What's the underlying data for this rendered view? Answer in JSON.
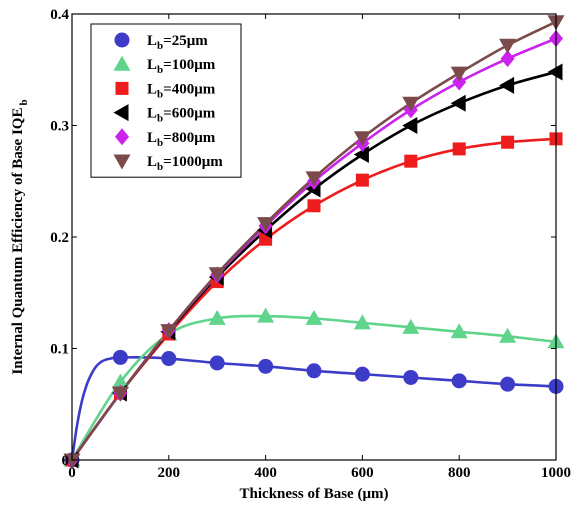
{
  "chart_data": {
    "type": "line",
    "xlabel": "Thickness of Base (μm)",
    "ylabel": "Internal Quantum Efficiency of Base IQE",
    "ylabel_sub": "b",
    "xlim": [
      0,
      1000
    ],
    "ylim": [
      0,
      0.4
    ],
    "xticks": [
      0,
      200,
      400,
      600,
      800,
      1000
    ],
    "yticks": [
      0,
      0.1,
      0.2,
      0.3,
      0.4
    ],
    "xtick_labels": [
      "0",
      "200",
      "400",
      "600",
      "800",
      "1000"
    ],
    "ytick_labels": [
      "0",
      "0.1",
      "0.2",
      "0.3",
      "0.4"
    ],
    "grid": false,
    "legend_position": "top-left",
    "x": [
      0,
      100,
      200,
      300,
      400,
      500,
      600,
      700,
      800,
      900,
      1000
    ],
    "series": [
      {
        "name": "L_b=25μm",
        "label_main": "L",
        "label_sub": "b",
        "label_rest": "=25μm",
        "color": "#3c3cc8",
        "marker": "circle",
        "values": [
          0,
          0.092,
          0.091,
          0.087,
          0.084,
          0.08,
          0.077,
          0.074,
          0.071,
          0.068,
          0.066
        ],
        "curve_x": [
          0,
          10,
          20,
          30,
          40,
          50,
          60,
          70,
          80,
          90,
          100,
          150,
          200,
          300,
          400,
          500,
          600,
          700,
          800,
          900,
          1000
        ],
        "curve_y": [
          0,
          0.03,
          0.052,
          0.067,
          0.077,
          0.084,
          0.088,
          0.09,
          0.091,
          0.092,
          0.092,
          0.092,
          0.091,
          0.087,
          0.084,
          0.08,
          0.077,
          0.074,
          0.071,
          0.068,
          0.066
        ]
      },
      {
        "name": "L_b=100μm",
        "label_main": "L",
        "label_sub": "b",
        "label_rest": "=100μm",
        "color": "#5fd48a",
        "marker": "triangle-up",
        "values": [
          0,
          0.07,
          0.113,
          0.127,
          0.129,
          0.127,
          0.123,
          0.119,
          0.115,
          0.111,
          0.106
        ]
      },
      {
        "name": "L_b=400μm",
        "label_main": "L",
        "label_sub": "b",
        "label_rest": "=400μm",
        "color": "#ee1c1c",
        "marker": "square",
        "values": [
          0,
          0.06,
          0.113,
          0.16,
          0.198,
          0.228,
          0.251,
          0.268,
          0.279,
          0.285,
          0.288
        ]
      },
      {
        "name": "L_b=600μm",
        "label_main": "L",
        "label_sub": "b",
        "label_rest": "=600μm",
        "color": "#000000",
        "marker": "triangle-left",
        "values": [
          0,
          0.06,
          0.115,
          0.164,
          0.206,
          0.243,
          0.274,
          0.3,
          0.32,
          0.336,
          0.348
        ]
      },
      {
        "name": "L_b=800μm",
        "label_main": "L",
        "label_sub": "b",
        "label_rest": "=800μm",
        "color": "#cc22ee",
        "marker": "diamond",
        "values": [
          0,
          0.06,
          0.116,
          0.166,
          0.21,
          0.25,
          0.284,
          0.314,
          0.339,
          0.36,
          0.378
        ]
      },
      {
        "name": "L_b=1000μm",
        "label_main": "L",
        "label_sub": "b",
        "label_rest": "=1000μm",
        "color": "#7b4a4a",
        "marker": "triangle-down",
        "values": [
          0,
          0.06,
          0.116,
          0.167,
          0.212,
          0.253,
          0.289,
          0.32,
          0.347,
          0.372,
          0.393
        ]
      }
    ]
  }
}
